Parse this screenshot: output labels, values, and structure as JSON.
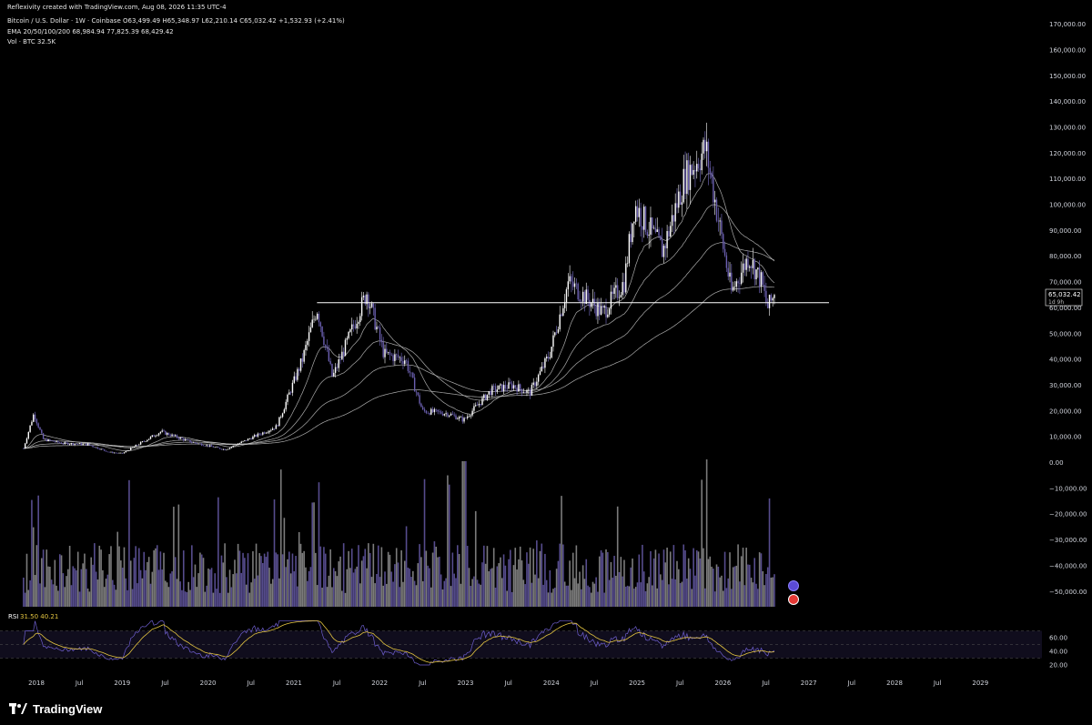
{
  "credit": "Reflexivity created with TradingView.com, Aug 08, 2026 11:35 UTC-4",
  "legend": {
    "line1": "Bitcoin / U.S. Dollar · 1W · Coinbase  O63,499.49  H65,348.97  L62,210.14  C65,032.42  +1,532.93 (+2.41%)",
    "line2": "EMA 20/50/100/200  68,984.94  77,825.39  68,429.42",
    "line3": "Vol · BTC  32.5K"
  },
  "price_tag": {
    "value": "65,032.42",
    "countdown": "1d 9h"
  },
  "rsi": {
    "label": "RSI",
    "values_text": "31.50  40.21",
    "ticks": [
      "60.00",
      "40.00",
      "20.00"
    ]
  },
  "branding": {
    "name": "TradingView",
    "logo_icon": "tradingview-logo-icon"
  },
  "colors": {
    "background": "#000000",
    "candle": "#ffffff",
    "volume": "#6b5fb0",
    "rsi_line": "#6f5fd0",
    "rsi_ma": "#e3c440",
    "ema": "#bdbdbd",
    "support_line": "#ffffff"
  },
  "chart_data": {
    "type": "candlestick",
    "interval": "1W",
    "y_axis_ticks": [
      "170,000.00",
      "160,000.00",
      "150,000.00",
      "140,000.00",
      "130,000.00",
      "120,000.00",
      "110,000.00",
      "100,000.00",
      "90,000.00",
      "80,000.00",
      "70,000.00",
      "60,000.00",
      "50,000.00",
      "40,000.00",
      "30,000.00",
      "20,000.00",
      "10,000.00",
      "0.00",
      "−10,000.00",
      "−20,000.00",
      "−30,000.00",
      "−40,000.00",
      "−50,000.00"
    ],
    "x_axis_ticks": [
      "2018",
      "Jul",
      "2019",
      "Jul",
      "2020",
      "Jul",
      "2021",
      "Jul",
      "2022",
      "Jul",
      "2023",
      "Jul",
      "2024",
      "Jul",
      "2025",
      "Jul",
      "2026",
      "Jul",
      "2027",
      "Jul",
      "2028",
      "Jul",
      "2029"
    ],
    "ylim": [
      -50000,
      170000
    ],
    "support_level": 62000,
    "price_path": [
      {
        "t": 2017.85,
        "p": 5500
      },
      {
        "t": 2017.97,
        "p": 19000
      },
      {
        "t": 2018.08,
        "p": 9000
      },
      {
        "t": 2018.3,
        "p": 7500
      },
      {
        "t": 2018.6,
        "p": 7000
      },
      {
        "t": 2018.85,
        "p": 4000
      },
      {
        "t": 2019.0,
        "p": 3500
      },
      {
        "t": 2019.45,
        "p": 12000
      },
      {
        "t": 2019.8,
        "p": 8000
      },
      {
        "t": 2020.2,
        "p": 5000
      },
      {
        "t": 2020.5,
        "p": 9500
      },
      {
        "t": 2020.8,
        "p": 14000
      },
      {
        "t": 2021.1,
        "p": 40000
      },
      {
        "t": 2021.27,
        "p": 60000
      },
      {
        "t": 2021.45,
        "p": 33000
      },
      {
        "t": 2021.6,
        "p": 45000
      },
      {
        "t": 2021.85,
        "p": 66000
      },
      {
        "t": 2022.05,
        "p": 42000
      },
      {
        "t": 2022.3,
        "p": 40000
      },
      {
        "t": 2022.5,
        "p": 20000
      },
      {
        "t": 2022.8,
        "p": 19000
      },
      {
        "t": 2022.98,
        "p": 16500
      },
      {
        "t": 2023.3,
        "p": 28000
      },
      {
        "t": 2023.55,
        "p": 30000
      },
      {
        "t": 2023.75,
        "p": 27000
      },
      {
        "t": 2023.98,
        "p": 42000
      },
      {
        "t": 2024.2,
        "p": 70000
      },
      {
        "t": 2024.6,
        "p": 58000
      },
      {
        "t": 2024.85,
        "p": 70000
      },
      {
        "t": 2024.97,
        "p": 100000
      },
      {
        "t": 2025.3,
        "p": 82000
      },
      {
        "t": 2025.55,
        "p": 110000
      },
      {
        "t": 2025.8,
        "p": 122000
      },
      {
        "t": 2025.98,
        "p": 88000
      },
      {
        "t": 2026.1,
        "p": 66000
      },
      {
        "t": 2026.3,
        "p": 80000
      },
      {
        "t": 2026.45,
        "p": 70000
      },
      {
        "t": 2026.52,
        "p": 60000
      },
      {
        "t": 2026.6,
        "p": 65032
      }
    ]
  }
}
